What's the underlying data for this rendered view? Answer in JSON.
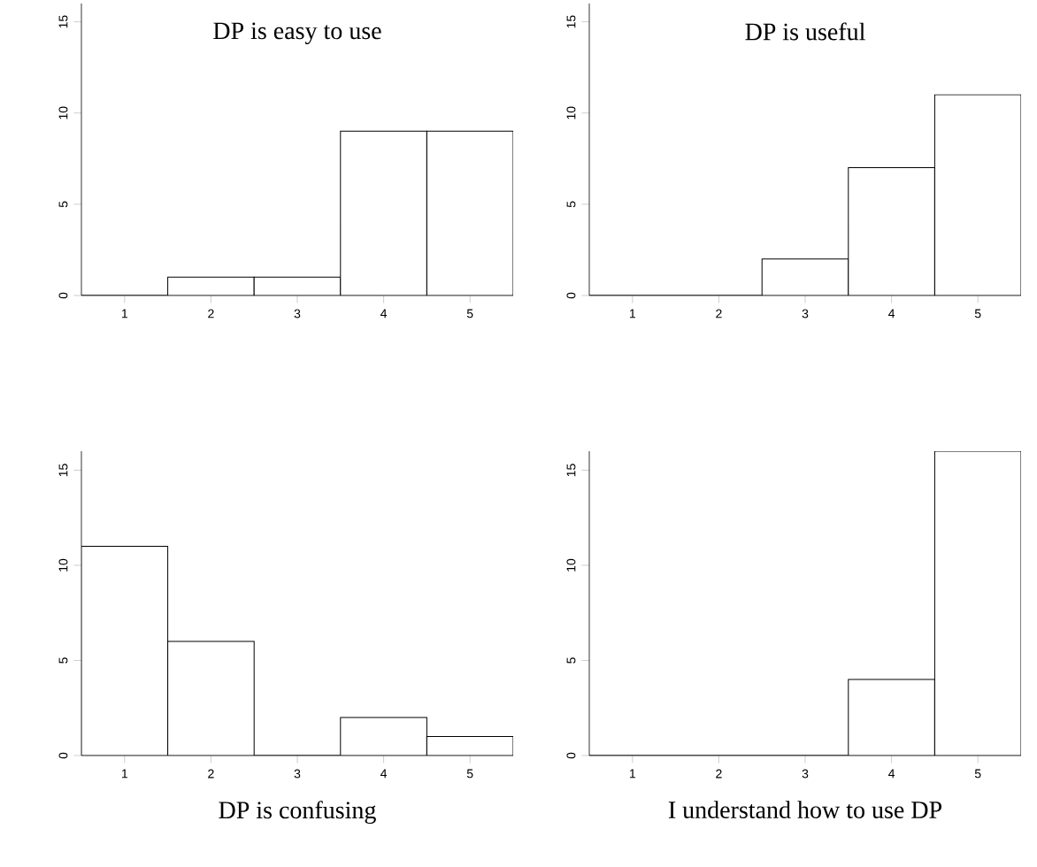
{
  "chart_data": [
    {
      "type": "histogram",
      "title": "DP is easy to use",
      "bins": [
        0.5,
        1.5,
        2.5,
        3.5,
        4.5,
        5.5
      ],
      "values": [
        0,
        1,
        1,
        9,
        9
      ],
      "xlim": [
        0.5,
        5.5
      ],
      "ylim": [
        0,
        16
      ],
      "xticks": [
        1,
        2,
        3,
        4,
        5
      ],
      "yticks": [
        0,
        5,
        10,
        15
      ]
    },
    {
      "type": "histogram",
      "title": "DP is useful",
      "bins": [
        0.5,
        1.5,
        2.5,
        3.5,
        4.5,
        5.5
      ],
      "values": [
        0,
        0,
        2,
        7,
        11
      ],
      "xlim": [
        0.5,
        5.5
      ],
      "ylim": [
        0,
        16
      ],
      "xticks": [
        1,
        2,
        3,
        4,
        5
      ],
      "yticks": [
        0,
        5,
        10,
        15
      ]
    },
    {
      "type": "histogram",
      "xlabel": "DP is confusing",
      "bins": [
        0.5,
        1.5,
        2.5,
        3.5,
        4.5,
        5.5
      ],
      "values": [
        11,
        6,
        0,
        2,
        1
      ],
      "xlim": [
        0.5,
        5.5
      ],
      "ylim": [
        0,
        16
      ],
      "xticks": [
        1,
        2,
        3,
        4,
        5
      ],
      "yticks": [
        0,
        5,
        10,
        15
      ]
    },
    {
      "type": "histogram",
      "xlabel": "I understand how to use DP",
      "bins": [
        0.5,
        1.5,
        2.5,
        3.5,
        4.5,
        5.5
      ],
      "values": [
        0,
        0,
        0,
        4,
        16
      ],
      "xlim": [
        0.5,
        5.5
      ],
      "ylim": [
        0,
        16
      ],
      "xticks": [
        1,
        2,
        3,
        4,
        5
      ],
      "yticks": [
        0,
        5,
        10,
        15
      ]
    }
  ]
}
